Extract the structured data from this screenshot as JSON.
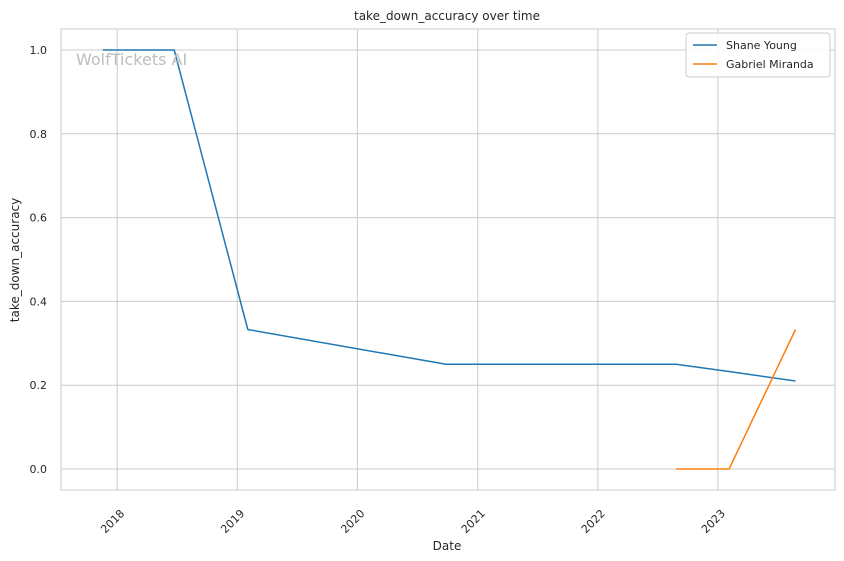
{
  "chart_data": {
    "type": "line",
    "title": "take_down_accuracy over time",
    "xlabel": "Date",
    "ylabel": "take_down_accuracy",
    "x_tick_labels": [
      "2018",
      "2019",
      "2020",
      "2021",
      "2022",
      "2023"
    ],
    "y_ticks": [
      0.0,
      0.2,
      0.4,
      0.6,
      0.8,
      1.0
    ],
    "y_tick_labels": [
      "0.0",
      "0.2",
      "0.4",
      "0.6",
      "0.8",
      "1.0"
    ],
    "xlim": [
      "2017-07-14",
      "2023-12-23"
    ],
    "ylim": [
      -0.05,
      1.05
    ],
    "grid": true,
    "legend_position": "top-right",
    "watermark": "WolfTickets AI",
    "series": [
      {
        "name": "Shane Young",
        "color": "#1f77b4",
        "points": [
          {
            "x": "2017-11-18",
            "y": 1.0
          },
          {
            "x": "2018-06-23",
            "y": 1.0
          },
          {
            "x": "2019-02-02",
            "y": 0.333
          },
          {
            "x": "2020-09-26",
            "y": 0.25
          },
          {
            "x": "2022-08-27",
            "y": 0.25
          },
          {
            "x": "2023-02-01",
            "y": 0.233
          },
          {
            "x": "2023-08-25",
            "y": 0.21
          }
        ]
      },
      {
        "name": "Gabriel Miranda",
        "color": "#ff7f0e",
        "points": [
          {
            "x": "2022-08-27",
            "y": 0.0
          },
          {
            "x": "2023-02-04",
            "y": 0.0
          },
          {
            "x": "2023-08-25",
            "y": 0.333
          }
        ]
      }
    ]
  }
}
